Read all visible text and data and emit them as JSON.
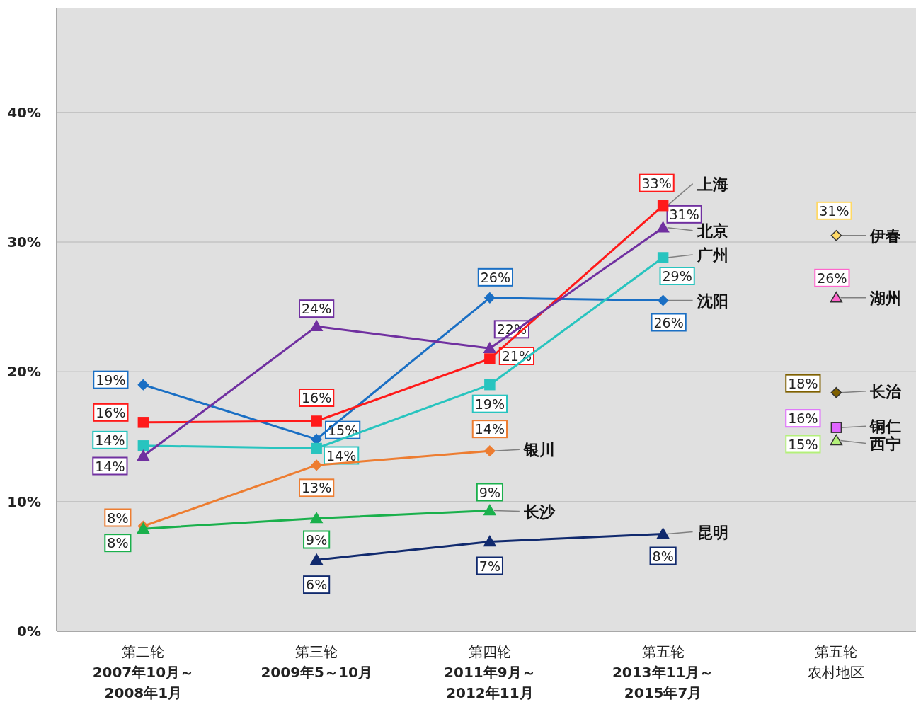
{
  "chart_data": {
    "type": "line",
    "categories": [
      "第二轮\n2007年10月～\n2008年1月",
      "第三轮\n2009年5～10月",
      "第四轮\n2011年9月～\n2012年11月",
      "第五轮\n2013年11月～\n2015年7月",
      "第五轮农村地区"
    ],
    "ylim": [
      0,
      48
    ],
    "yticks": [
      {
        "value": 0,
        "label": "0%"
      },
      {
        "value": 10,
        "label": "10%"
      },
      {
        "value": 20,
        "label": "20%"
      },
      {
        "value": 30,
        "label": "30%"
      },
      {
        "value": 40,
        "label": "40%"
      }
    ],
    "grid": "y",
    "series": [
      {
        "name": "沈阳",
        "color": "#1a6fc4",
        "marker": "diamond",
        "values": [
          19.0,
          14.8,
          25.7,
          25.5,
          null
        ],
        "value_labels": [
          "19%",
          "15%",
          "26%",
          "26%",
          null
        ]
      },
      {
        "name": "上海",
        "color": "#ff1a1a",
        "marker": "square",
        "values": [
          16.1,
          16.2,
          21.0,
          32.8,
          null
        ],
        "value_labels": [
          "16%",
          "16%",
          "21%",
          "33%",
          null
        ]
      },
      {
        "name": "广州",
        "color": "#28c4bf",
        "marker": "square",
        "values": [
          14.3,
          14.1,
          19.0,
          28.8,
          null
        ],
        "value_labels": [
          "14%",
          "14%",
          "19%",
          "29%",
          null
        ]
      },
      {
        "name": "北京",
        "color": "#7030a0",
        "marker": "triangle",
        "values": [
          13.5,
          23.5,
          21.8,
          31.1,
          null
        ],
        "value_labels": [
          "14%",
          "24%",
          "22%",
          "31%",
          null
        ]
      },
      {
        "name": "银川",
        "color": "#ed7d31",
        "marker": "diamond",
        "values": [
          8.1,
          12.8,
          13.9,
          null,
          null
        ],
        "value_labels": [
          "8%",
          "13%",
          "14%",
          null,
          null
        ]
      },
      {
        "name": "长沙",
        "color": "#1ab04c",
        "marker": "triangle",
        "values": [
          7.9,
          8.7,
          9.3,
          null,
          null
        ],
        "value_labels": [
          "8%",
          "9%",
          "9%",
          null,
          null
        ]
      },
      {
        "name": "昆明",
        "color": "#112a6e",
        "marker": "triangle",
        "values": [
          null,
          5.5,
          6.9,
          7.5,
          null
        ],
        "value_labels": [
          null,
          "6%",
          "7%",
          "8%",
          null
        ]
      },
      {
        "name": "伊春",
        "color": "#ffd966",
        "marker": "diamond",
        "values": [
          null,
          null,
          null,
          null,
          30.5
        ],
        "value_labels": [
          null,
          null,
          null,
          null,
          "31%"
        ]
      },
      {
        "name": "湖州",
        "color": "#ff66cc",
        "marker": "triangle",
        "values": [
          null,
          null,
          null,
          null,
          25.7
        ],
        "value_labels": [
          null,
          null,
          null,
          null,
          "26%"
        ]
      },
      {
        "name": "长治",
        "color": "#7f6000",
        "marker": "diamond",
        "values": [
          null,
          null,
          null,
          null,
          18.4
        ],
        "value_labels": [
          null,
          null,
          null,
          null,
          "18%"
        ]
      },
      {
        "name": "铜仁",
        "color": "#e066ff",
        "marker": "square",
        "values": [
          null,
          null,
          null,
          null,
          15.7
        ],
        "value_labels": [
          null,
          null,
          null,
          null,
          "16%"
        ]
      },
      {
        "name": "西宁",
        "color": "#b4f07a",
        "marker": "triangle",
        "values": [
          null,
          null,
          null,
          null,
          14.7
        ],
        "value_labels": [
          null,
          null,
          null,
          null,
          "15%"
        ]
      }
    ]
  }
}
